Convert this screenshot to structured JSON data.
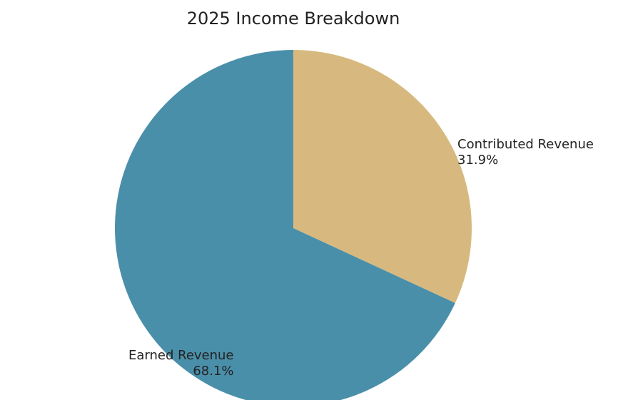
{
  "chart_data": {
    "type": "pie",
    "title": "2025 Income Breakdown",
    "slices": [
      {
        "label": "Contributed Revenue",
        "value": 31.9,
        "percent_label": "31.9%",
        "color": "#D7B97F"
      },
      {
        "label": "Earned Revenue",
        "value": 68.1,
        "percent_label": "68.1%",
        "color": "#4A8FA9"
      }
    ],
    "start_angle": "top",
    "direction": "clockwise",
    "legend": "none"
  }
}
